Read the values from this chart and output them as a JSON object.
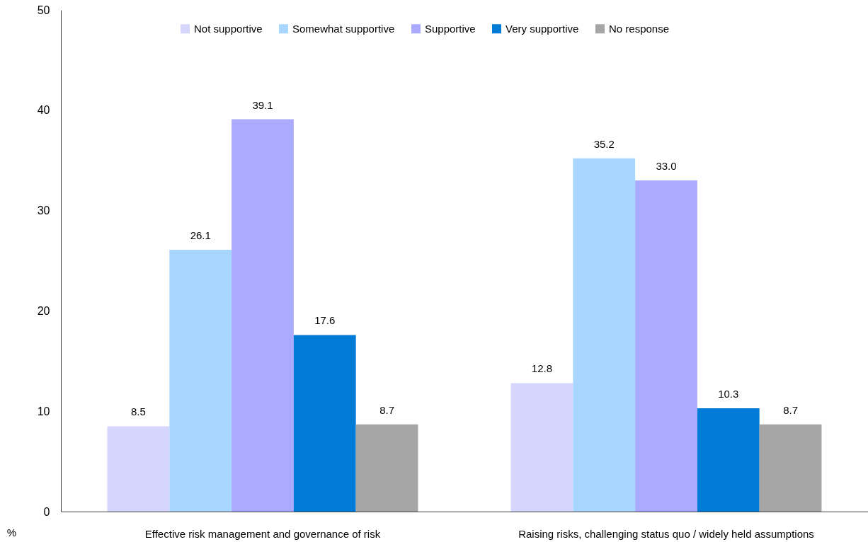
{
  "chart_data": {
    "type": "bar",
    "ylabel": "%",
    "categories": [
      "Effective risk management and governance of risk",
      "Raising risks, challenging status quo / widely held assumptions"
    ],
    "series": [
      {
        "name": "Not supportive",
        "color": "#d6d6fc",
        "values": [
          8.5,
          12.8
        ],
        "value_labels": [
          "8.5",
          "12.8"
        ]
      },
      {
        "name": "Somewhat supportive",
        "color": "#a9d6fe",
        "values": [
          26.1,
          35.2
        ],
        "value_labels": [
          "26.1",
          "35.2"
        ]
      },
      {
        "name": "Supportive",
        "color": "#aaaafe",
        "values": [
          39.1,
          33.0
        ],
        "value_labels": [
          "39.1",
          "33.0"
        ]
      },
      {
        "name": "Very supportive",
        "color": "#007bd6",
        "values": [
          17.6,
          10.3
        ],
        "value_labels": [
          "17.6",
          "10.3"
        ]
      },
      {
        "name": "No response",
        "color": "#a6a6a6",
        "values": [
          8.7,
          8.7
        ],
        "value_labels": [
          "8.7",
          "8.7"
        ]
      }
    ],
    "ylim": [
      0,
      50
    ],
    "yticks": [
      0,
      10,
      20,
      30,
      40,
      50
    ],
    "grid": false,
    "legend": "top"
  }
}
